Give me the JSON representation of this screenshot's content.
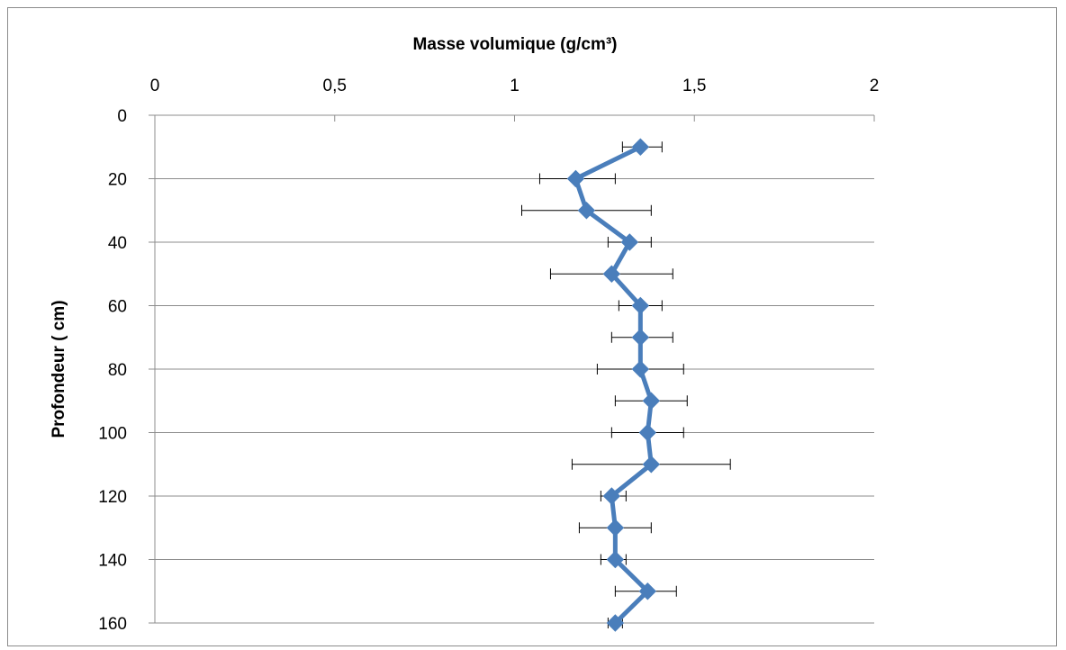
{
  "chart_data": {
    "type": "line",
    "title": "",
    "xlabel": "Masse volumique (g/cm³)",
    "ylabel": "Profondeur ( cm)",
    "xlim": [
      0,
      2
    ],
    "ylim": [
      0,
      160
    ],
    "x_axis_position": "top",
    "y_axis_inverted": true,
    "x_ticks": [
      0,
      0.5,
      1,
      1.5,
      2
    ],
    "x_tick_labels": [
      "0",
      "0,5",
      "1",
      "1,5",
      "2"
    ],
    "y_ticks": [
      0,
      20,
      40,
      60,
      80,
      100,
      120,
      140,
      160
    ],
    "y_tick_labels": [
      "0",
      "20",
      "40",
      "60",
      "80",
      "100",
      "120",
      "140",
      "160"
    ],
    "grid": "horizontal",
    "legend": "none",
    "series": [
      {
        "color": "#4a7ebb",
        "marker": "diamond",
        "points": [
          {
            "depth": 10,
            "density": 1.35,
            "err_low": 1.3,
            "err_high": 1.41
          },
          {
            "depth": 20,
            "density": 1.17,
            "err_low": 1.07,
            "err_high": 1.28
          },
          {
            "depth": 30,
            "density": 1.2,
            "err_low": 1.02,
            "err_high": 1.38
          },
          {
            "depth": 40,
            "density": 1.32,
            "err_low": 1.26,
            "err_high": 1.38
          },
          {
            "depth": 50,
            "density": 1.27,
            "err_low": 1.1,
            "err_high": 1.44
          },
          {
            "depth": 60,
            "density": 1.35,
            "err_low": 1.29,
            "err_high": 1.41
          },
          {
            "depth": 70,
            "density": 1.35,
            "err_low": 1.27,
            "err_high": 1.44
          },
          {
            "depth": 80,
            "density": 1.35,
            "err_low": 1.23,
            "err_high": 1.47
          },
          {
            "depth": 90,
            "density": 1.38,
            "err_low": 1.28,
            "err_high": 1.48
          },
          {
            "depth": 100,
            "density": 1.37,
            "err_low": 1.27,
            "err_high": 1.47
          },
          {
            "depth": 110,
            "density": 1.38,
            "err_low": 1.16,
            "err_high": 1.6
          },
          {
            "depth": 120,
            "density": 1.27,
            "err_low": 1.24,
            "err_high": 1.31
          },
          {
            "depth": 130,
            "density": 1.28,
            "err_low": 1.18,
            "err_high": 1.38
          },
          {
            "depth": 140,
            "density": 1.28,
            "err_low": 1.24,
            "err_high": 1.31
          },
          {
            "depth": 150,
            "density": 1.37,
            "err_low": 1.28,
            "err_high": 1.45
          },
          {
            "depth": 160,
            "density": 1.28,
            "err_low": 1.26,
            "err_high": 1.3
          }
        ]
      }
    ]
  }
}
